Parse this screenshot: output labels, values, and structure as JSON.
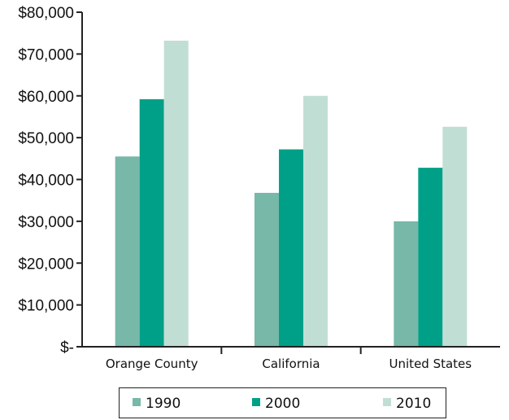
{
  "chart_data": {
    "type": "bar",
    "title": "",
    "xlabel": "",
    "ylabel": "",
    "categories": [
      "Orange County",
      "California",
      "United States"
    ],
    "series": [
      {
        "name": "1990",
        "values": [
          45500,
          36800,
          30000
        ],
        "color": "#77b8a8"
      },
      {
        "name": "2000",
        "values": [
          59200,
          47200,
          42800
        ],
        "color": "#00a088"
      },
      {
        "name": "2010",
        "values": [
          73200,
          60000,
          52600
        ],
        "color": "#c1ded5"
      }
    ],
    "ylim": [
      0,
      80000
    ],
    "y_ticks": [
      0,
      10000,
      20000,
      30000,
      40000,
      50000,
      60000,
      70000,
      80000
    ],
    "y_tick_labels": [
      "$-",
      "$10,000",
      "$20,000",
      "$30,000",
      "$40,000",
      "$50,000",
      "$60,000",
      "$70,000",
      "$80,000"
    ],
    "grid": false,
    "legend_position": "bottom"
  }
}
